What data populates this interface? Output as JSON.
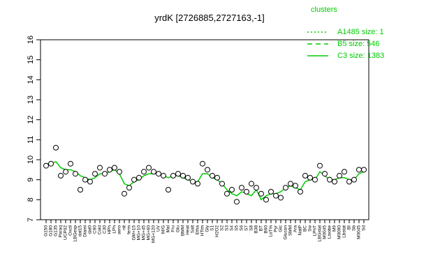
{
  "chart_data": {
    "type": "line",
    "title": "yrdK [2726885,2727163,-1]",
    "categories": [
      "G150",
      "G180",
      "G135",
      "Paraq",
      "UCP02",
      "Oxctl",
      "LBGexp",
      "dat15",
      "Diami",
      "dat0",
      "C90",
      "Cold",
      "C30",
      "HPh",
      "LPh",
      "aero",
      "nit",
      "ferm",
      "GM+15",
      "MG+10",
      "MG+45",
      "MG+60",
      "MG+120",
      "UV",
      "M/G",
      "Mal",
      "Fru",
      "Glu",
      "BMM",
      "Heat",
      "Salt",
      "Etha",
      "HTim",
      "Gly",
      "S1",
      "H2O2",
      "S2",
      "S3",
      "S4",
      "S5",
      "S6",
      "S7",
      "S8",
      "B38",
      "BT",
      "B60",
      "LoTm",
      "Pyr",
      "Glc",
      "Glucon",
      "SMM",
      "Ara",
      "NatP",
      "BC",
      "Sw",
      "LPhT",
      "LBGstat",
      "M0045",
      "Lisobe",
      "M9",
      "M0090",
      "Lbstat",
      "BI",
      "Sb",
      "M0045",
      "Sd"
    ],
    "series": [
      {
        "name": "C3 size: 1383",
        "color": "#00cc00",
        "values": [
          9.8,
          9.8,
          9.9,
          9.6,
          9.5,
          9.5,
          9.4,
          9.2,
          9.1,
          9.0,
          9.1,
          9.3,
          9.3,
          9.4,
          9.5,
          9.3,
          8.8,
          8.7,
          8.9,
          9.0,
          9.2,
          9.3,
          9.3,
          9.3,
          9.2,
          9.1,
          9.2,
          9.2,
          9.1,
          9.0,
          8.9,
          8.9,
          9.3,
          9.3,
          9.1,
          9.0,
          8.8,
          8.5,
          8.3,
          8.2,
          8.4,
          8.3,
          8.2,
          8.5,
          8.0,
          8.2,
          8.3,
          8.3,
          8.4,
          8.6,
          8.7,
          8.6,
          8.5,
          8.9,
          9.0,
          9.0,
          9.4,
          9.2,
          9.0,
          9.0,
          9.1,
          9.1,
          9.0,
          9.0,
          9.3,
          9.4
        ]
      }
    ],
    "points": [
      9.7,
      9.8,
      10.6,
      9.2,
      9.4,
      9.8,
      9.3,
      8.5,
      9.0,
      8.9,
      9.3,
      9.6,
      9.3,
      9.5,
      9.6,
      9.4,
      8.3,
      8.6,
      9.0,
      9.1,
      9.4,
      9.6,
      9.4,
      9.3,
      9.2,
      8.5,
      9.2,
      9.3,
      9.2,
      9.1,
      8.9,
      8.8,
      9.8,
      9.5,
      9.2,
      9.1,
      8.8,
      8.3,
      8.5,
      7.9,
      8.6,
      8.4,
      8.8,
      8.6,
      8.3,
      8.0,
      8.4,
      8.2,
      8.1,
      8.6,
      8.8,
      8.7,
      8.4,
      9.2,
      9.1,
      9.0,
      9.7,
      9.3,
      9.0,
      8.9,
      9.2,
      9.4,
      8.9,
      9.0,
      9.5,
      9.5
    ],
    "points_color": "#000000",
    "ylim": [
      7,
      16
    ],
    "yticks": [
      7,
      8,
      9,
      10,
      11,
      12,
      13,
      14,
      15,
      16
    ],
    "legend_title": "clusters",
    "legend_extra": [
      {
        "name": "A1485 size: 1",
        "dash": "2,3"
      },
      {
        "name": "B5 size: 546",
        "dash": "7,5"
      }
    ]
  }
}
